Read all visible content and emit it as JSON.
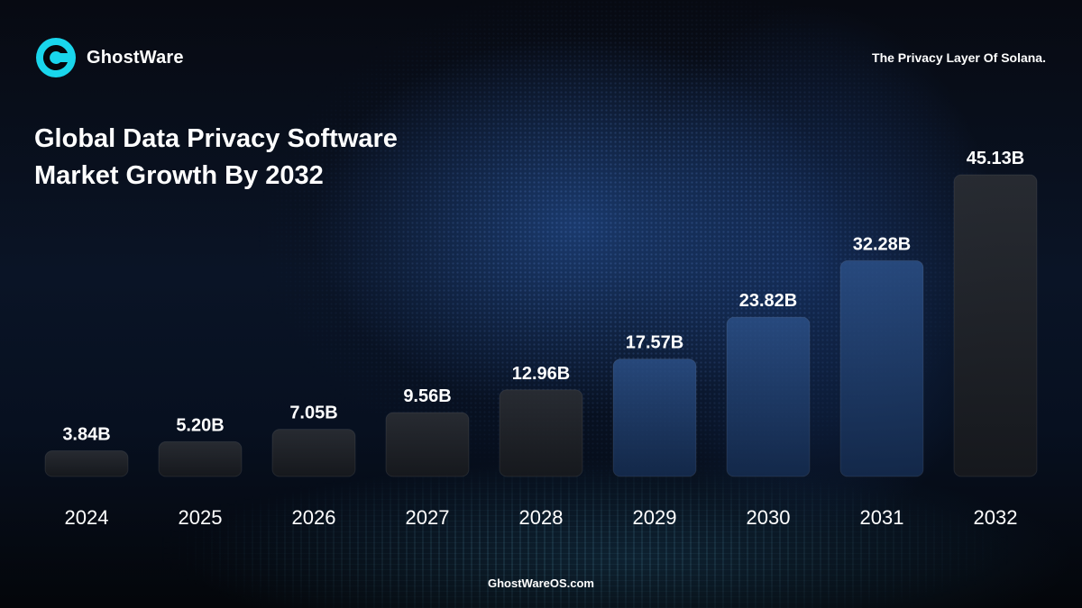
{
  "header": {
    "brand": "GhostWare",
    "tagline": "The Privacy Layer Of Solana.",
    "logo_icon": "ghost-logo-icon",
    "accent_color": "#19d6ec"
  },
  "footer": {
    "url": "GhostWareOS.com"
  },
  "chart_data": {
    "type": "bar",
    "title": [
      "Global Data Privacy Software",
      "Market Growth By 2032"
    ],
    "categories": [
      "2024",
      "2025",
      "2026",
      "2027",
      "2028",
      "2029",
      "2030",
      "2031",
      "2032"
    ],
    "values": [
      3.84,
      5.2,
      7.05,
      9.56,
      12.96,
      17.57,
      23.82,
      32.28,
      45.13
    ],
    "value_labels": [
      "3.84B",
      "5.20B",
      "7.05B",
      "9.56B",
      "12.96B",
      "17.57B",
      "23.82B",
      "32.28B",
      "45.13B"
    ],
    "grid": false,
    "legend": "none"
  }
}
